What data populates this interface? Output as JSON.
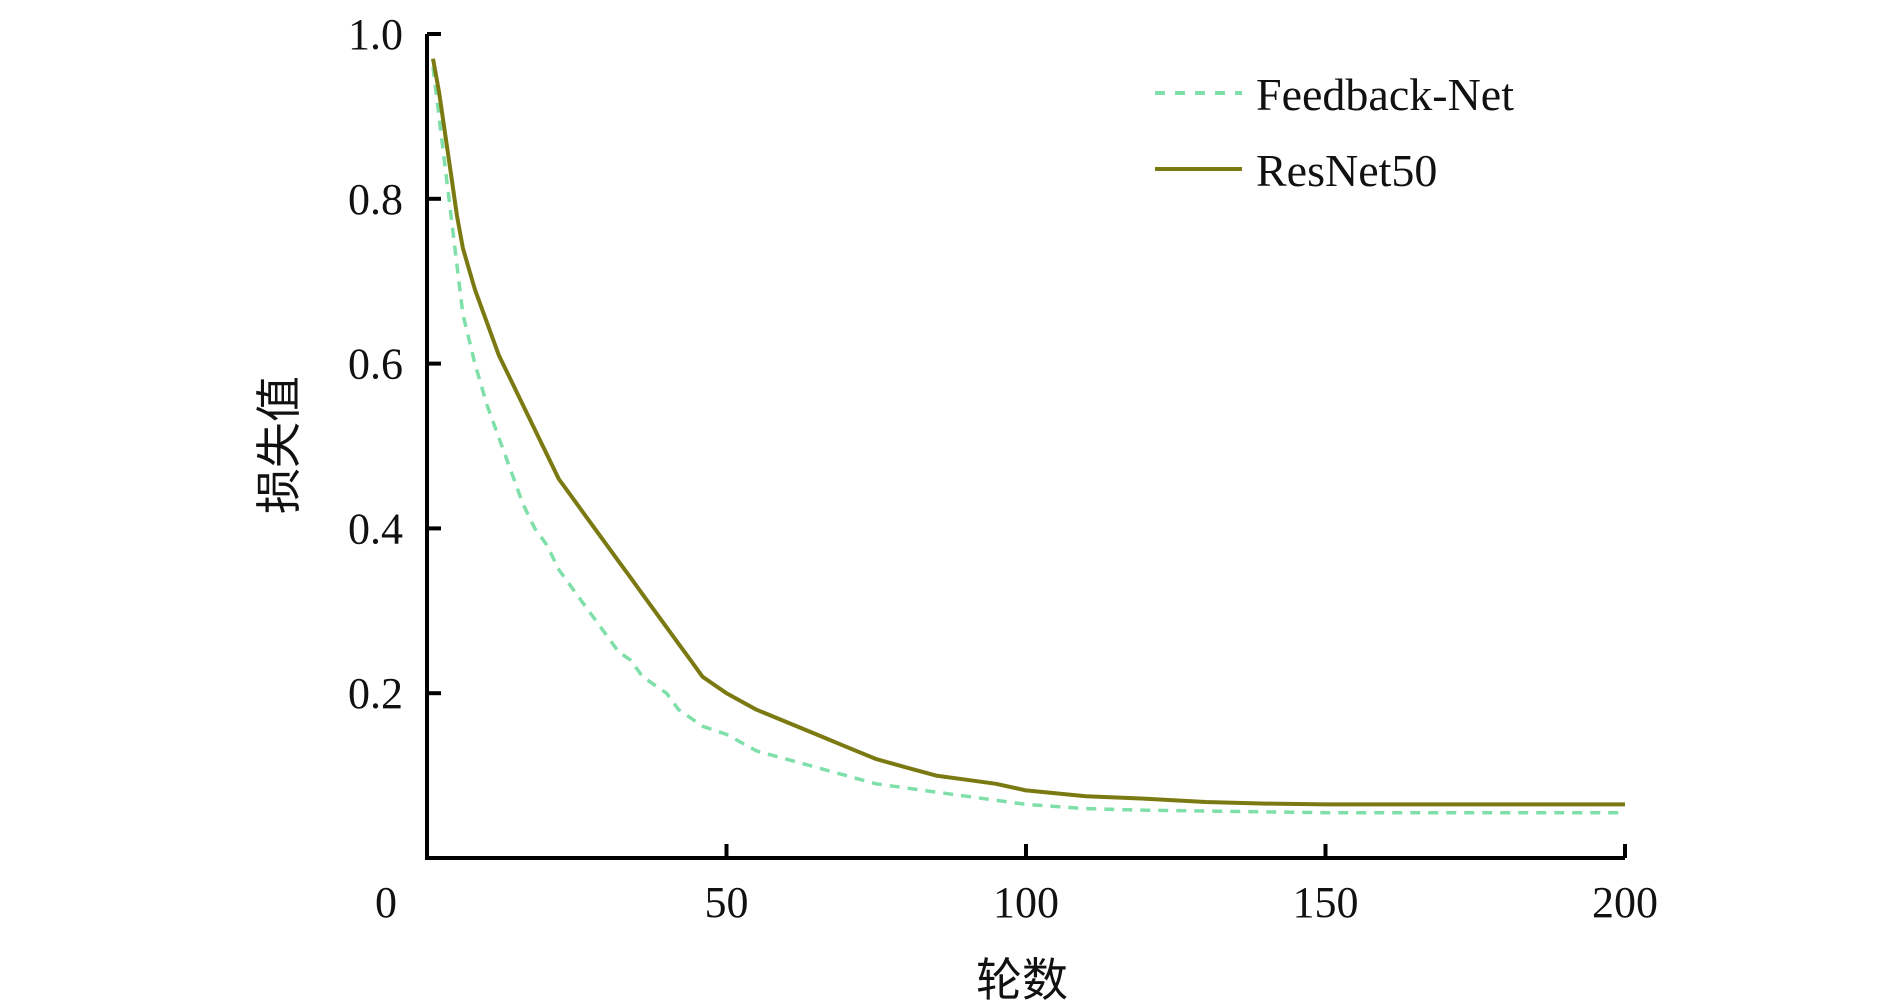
{
  "chart_data": {
    "type": "line",
    "xlabel": "轮数",
    "ylabel": "损失值",
    "xlim": [
      0,
      200
    ],
    "ylim": [
      0,
      1.0
    ],
    "xticks": [
      0,
      50,
      100,
      150,
      200
    ],
    "yticks": [
      0.2,
      0.4,
      0.6,
      0.8,
      1.0
    ],
    "xtick_labels": [
      "0",
      "50",
      "100",
      "150",
      "200"
    ],
    "ytick_labels": [
      "0.2",
      "0.4",
      "0.6",
      "0.8",
      "1.0"
    ],
    "grid": false,
    "legend_position": "top-right",
    "series": [
      {
        "name": "Feedback-Net",
        "style": "dashed",
        "color": "#7ee0a8",
        "x": [
          1,
          2,
          3,
          4,
          5,
          6,
          8,
          10,
          12,
          14,
          16,
          18,
          20,
          22,
          24,
          26,
          28,
          30,
          32,
          34,
          36,
          38,
          40,
          42,
          44,
          46,
          48,
          50,
          55,
          60,
          65,
          70,
          75,
          80,
          85,
          90,
          95,
          100,
          110,
          120,
          130,
          140,
          150,
          160,
          170,
          180,
          190,
          200
        ],
        "y": [
          0.96,
          0.9,
          0.84,
          0.78,
          0.72,
          0.66,
          0.6,
          0.55,
          0.51,
          0.47,
          0.43,
          0.4,
          0.38,
          0.35,
          0.33,
          0.31,
          0.29,
          0.27,
          0.25,
          0.24,
          0.22,
          0.21,
          0.2,
          0.18,
          0.17,
          0.16,
          0.155,
          0.15,
          0.13,
          0.12,
          0.11,
          0.1,
          0.09,
          0.085,
          0.08,
          0.075,
          0.07,
          0.065,
          0.06,
          0.058,
          0.057,
          0.056,
          0.055,
          0.055,
          0.055,
          0.055,
          0.055,
          0.055
        ]
      },
      {
        "name": "ResNet50",
        "style": "solid",
        "color": "#7b7a12",
        "x": [
          1,
          2,
          3,
          4,
          5,
          6,
          8,
          10,
          12,
          14,
          16,
          18,
          20,
          22,
          24,
          26,
          28,
          30,
          32,
          34,
          36,
          38,
          40,
          42,
          44,
          46,
          48,
          50,
          55,
          60,
          65,
          70,
          75,
          80,
          85,
          90,
          95,
          100,
          110,
          120,
          130,
          140,
          150,
          160,
          170,
          180,
          190,
          200
        ],
        "y": [
          0.97,
          0.93,
          0.88,
          0.83,
          0.78,
          0.74,
          0.69,
          0.65,
          0.61,
          0.58,
          0.55,
          0.52,
          0.49,
          0.46,
          0.44,
          0.42,
          0.4,
          0.38,
          0.36,
          0.34,
          0.32,
          0.3,
          0.28,
          0.26,
          0.24,
          0.22,
          0.21,
          0.2,
          0.18,
          0.165,
          0.15,
          0.135,
          0.12,
          0.11,
          0.1,
          0.095,
          0.09,
          0.082,
          0.075,
          0.072,
          0.068,
          0.066,
          0.065,
          0.065,
          0.065,
          0.065,
          0.065,
          0.065
        ]
      }
    ]
  }
}
